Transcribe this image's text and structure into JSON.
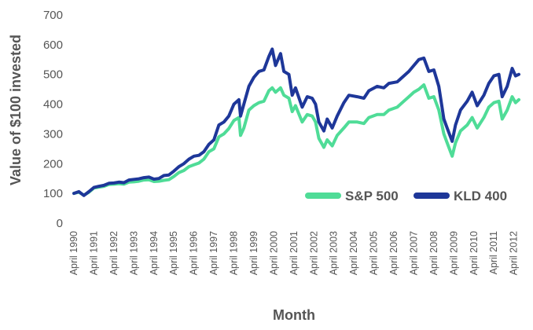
{
  "chart_data": {
    "type": "line",
    "xlabel": "Month",
    "ylabel": "Value of $100 invested",
    "ylim": [
      0,
      700
    ],
    "yticks": [
      0,
      100,
      200,
      300,
      400,
      500,
      600,
      700
    ],
    "x_tick_labels": [
      "April 1990",
      "April 1991",
      "April 1992",
      "April 1993",
      "April 1994",
      "April 1995",
      "April 1996",
      "April 1997",
      "April 1998",
      "April 1999",
      "April 2000",
      "April 2001",
      "April 2002",
      "April 2003",
      "April 2004",
      "April 2005",
      "April 2006",
      "April 2007",
      "April 2008",
      "April 2009",
      "April 2010",
      "April 2011",
      "April 2012"
    ],
    "x_range": [
      "1990-04",
      "2012-07"
    ],
    "grid": false,
    "legend_position": "bottom-right",
    "series": [
      {
        "name": "S&P 500",
        "color": "#4fdc97",
        "points": [
          [
            "1990-04",
            100
          ],
          [
            "1990-07",
            104
          ],
          [
            "1990-10",
            94
          ],
          [
            "1991-01",
            104
          ],
          [
            "1991-04",
            118
          ],
          [
            "1991-07",
            121
          ],
          [
            "1991-10",
            124
          ],
          [
            "1992-01",
            130
          ],
          [
            "1992-04",
            131
          ],
          [
            "1992-07",
            133
          ],
          [
            "1992-10",
            131
          ],
          [
            "1993-01",
            138
          ],
          [
            "1993-04",
            139
          ],
          [
            "1993-07",
            141
          ],
          [
            "1993-10",
            145
          ],
          [
            "1994-01",
            146
          ],
          [
            "1994-04",
            140
          ],
          [
            "1994-07",
            141
          ],
          [
            "1994-10",
            144
          ],
          [
            "1995-01",
            146
          ],
          [
            "1995-04",
            157
          ],
          [
            "1995-07",
            170
          ],
          [
            "1995-10",
            177
          ],
          [
            "1996-01",
            190
          ],
          [
            "1996-04",
            196
          ],
          [
            "1996-07",
            202
          ],
          [
            "1996-10",
            215
          ],
          [
            "1997-01",
            240
          ],
          [
            "1997-04",
            250
          ],
          [
            "1997-07",
            290
          ],
          [
            "1997-10",
            300
          ],
          [
            "1998-01",
            318
          ],
          [
            "1998-04",
            345
          ],
          [
            "1998-07",
            355
          ],
          [
            "1998-08",
            295
          ],
          [
            "1998-10",
            320
          ],
          [
            "1999-01",
            380
          ],
          [
            "1999-04",
            395
          ],
          [
            "1999-07",
            405
          ],
          [
            "1999-10",
            410
          ],
          [
            "2000-01",
            445
          ],
          [
            "2000-03",
            455
          ],
          [
            "2000-05",
            440
          ],
          [
            "2000-08",
            455
          ],
          [
            "2000-10",
            430
          ],
          [
            "2001-01",
            420
          ],
          [
            "2001-03",
            375
          ],
          [
            "2001-05",
            395
          ],
          [
            "2001-09",
            340
          ],
          [
            "2001-12",
            365
          ],
          [
            "2002-03",
            360
          ],
          [
            "2002-05",
            340
          ],
          [
            "2002-07",
            285
          ],
          [
            "2002-10",
            255
          ],
          [
            "2002-12",
            280
          ],
          [
            "2003-03",
            260
          ],
          [
            "2003-06",
            295
          ],
          [
            "2003-10",
            320
          ],
          [
            "2004-01",
            340
          ],
          [
            "2004-06",
            340
          ],
          [
            "2004-10",
            335
          ],
          [
            "2005-01",
            355
          ],
          [
            "2005-06",
            365
          ],
          [
            "2005-10",
            365
          ],
          [
            "2006-01",
            380
          ],
          [
            "2006-06",
            390
          ],
          [
            "2006-10",
            410
          ],
          [
            "2007-01",
            425
          ],
          [
            "2007-04",
            440
          ],
          [
            "2007-07",
            450
          ],
          [
            "2007-10",
            465
          ],
          [
            "2008-01",
            420
          ],
          [
            "2008-04",
            425
          ],
          [
            "2008-07",
            380
          ],
          [
            "2008-10",
            300
          ],
          [
            "2008-12",
            270
          ],
          [
            "2009-03",
            225
          ],
          [
            "2009-05",
            270
          ],
          [
            "2009-08",
            310
          ],
          [
            "2009-12",
            330
          ],
          [
            "2010-03",
            355
          ],
          [
            "2010-06",
            320
          ],
          [
            "2010-10",
            355
          ],
          [
            "2011-01",
            390
          ],
          [
            "2011-04",
            405
          ],
          [
            "2011-07",
            410
          ],
          [
            "2011-09",
            350
          ],
          [
            "2011-12",
            380
          ],
          [
            "2012-03",
            425
          ],
          [
            "2012-05",
            405
          ],
          [
            "2012-07",
            415
          ]
        ]
      },
      {
        "name": "KLD 400",
        "color": "#1e3799",
        "points": [
          [
            "1990-04",
            100
          ],
          [
            "1990-07",
            106
          ],
          [
            "1990-10",
            93
          ],
          [
            "1991-01",
            106
          ],
          [
            "1991-04",
            120
          ],
          [
            "1991-07",
            124
          ],
          [
            "1991-10",
            127
          ],
          [
            "1992-01",
            134
          ],
          [
            "1992-04",
            135
          ],
          [
            "1992-07",
            138
          ],
          [
            "1992-10",
            136
          ],
          [
            "1993-01",
            145
          ],
          [
            "1993-04",
            147
          ],
          [
            "1993-07",
            149
          ],
          [
            "1993-10",
            153
          ],
          [
            "1994-01",
            155
          ],
          [
            "1994-04",
            148
          ],
          [
            "1994-07",
            150
          ],
          [
            "1994-10",
            160
          ],
          [
            "1995-01",
            162
          ],
          [
            "1995-04",
            175
          ],
          [
            "1995-07",
            190
          ],
          [
            "1995-10",
            200
          ],
          [
            "1996-01",
            215
          ],
          [
            "1996-04",
            225
          ],
          [
            "1996-07",
            228
          ],
          [
            "1996-10",
            240
          ],
          [
            "1997-01",
            265
          ],
          [
            "1997-04",
            280
          ],
          [
            "1997-07",
            330
          ],
          [
            "1997-10",
            340
          ],
          [
            "1998-01",
            360
          ],
          [
            "1998-04",
            400
          ],
          [
            "1998-07",
            415
          ],
          [
            "1998-08",
            360
          ],
          [
            "1998-10",
            400
          ],
          [
            "1999-01",
            460
          ],
          [
            "1999-04",
            490
          ],
          [
            "1999-07",
            510
          ],
          [
            "1999-10",
            515
          ],
          [
            "2000-01",
            560
          ],
          [
            "2000-03",
            585
          ],
          [
            "2000-05",
            530
          ],
          [
            "2000-08",
            570
          ],
          [
            "2000-10",
            510
          ],
          [
            "2001-01",
            500
          ],
          [
            "2001-03",
            430
          ],
          [
            "2001-05",
            455
          ],
          [
            "2001-09",
            390
          ],
          [
            "2001-12",
            425
          ],
          [
            "2002-03",
            420
          ],
          [
            "2002-05",
            400
          ],
          [
            "2002-07",
            340
          ],
          [
            "2002-10",
            310
          ],
          [
            "2002-12",
            350
          ],
          [
            "2003-03",
            320
          ],
          [
            "2003-06",
            360
          ],
          [
            "2003-10",
            405
          ],
          [
            "2004-01",
            430
          ],
          [
            "2004-06",
            425
          ],
          [
            "2004-10",
            420
          ],
          [
            "2005-01",
            445
          ],
          [
            "2005-06",
            460
          ],
          [
            "2005-10",
            455
          ],
          [
            "2006-01",
            470
          ],
          [
            "2006-06",
            475
          ],
          [
            "2006-10",
            495
          ],
          [
            "2007-01",
            510
          ],
          [
            "2007-04",
            530
          ],
          [
            "2007-07",
            550
          ],
          [
            "2007-10",
            555
          ],
          [
            "2008-01",
            510
          ],
          [
            "2008-04",
            515
          ],
          [
            "2008-07",
            460
          ],
          [
            "2008-10",
            350
          ],
          [
            "2008-12",
            320
          ],
          [
            "2009-03",
            275
          ],
          [
            "2009-05",
            330
          ],
          [
            "2009-08",
            380
          ],
          [
            "2009-12",
            410
          ],
          [
            "2010-03",
            440
          ],
          [
            "2010-06",
            395
          ],
          [
            "2010-10",
            430
          ],
          [
            "2011-01",
            470
          ],
          [
            "2011-04",
            495
          ],
          [
            "2011-07",
            500
          ],
          [
            "2011-09",
            425
          ],
          [
            "2011-12",
            460
          ],
          [
            "2012-03",
            520
          ],
          [
            "2012-05",
            495
          ],
          [
            "2012-07",
            500
          ]
        ]
      }
    ]
  }
}
